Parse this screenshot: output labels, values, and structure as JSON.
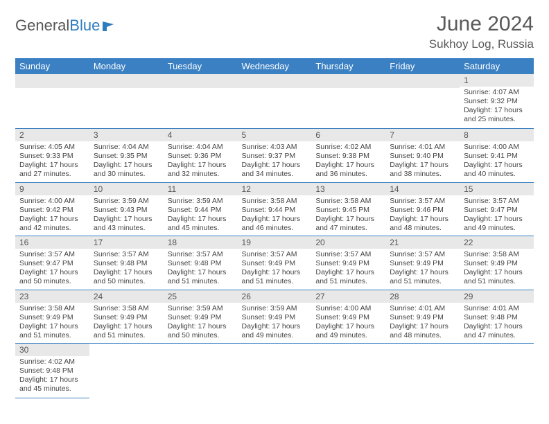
{
  "brand": {
    "part1": "General",
    "part2": "Blue",
    "accent_color": "#2f7bbf"
  },
  "title": {
    "month": "June 2024",
    "location": "Sukhoy Log, Russia"
  },
  "colors": {
    "header_bg": "#3a80c3",
    "header_text": "#ffffff",
    "strip_bg": "#e8e8e8",
    "cell_border": "#3a80c3",
    "text": "#444444",
    "title_text": "#5a5a5a"
  },
  "weekdays": [
    "Sunday",
    "Monday",
    "Tuesday",
    "Wednesday",
    "Thursday",
    "Friday",
    "Saturday"
  ],
  "weeks": [
    [
      null,
      null,
      null,
      null,
      null,
      null,
      {
        "n": "1",
        "sr": "Sunrise: 4:07 AM",
        "ss": "Sunset: 9:32 PM",
        "d1": "Daylight: 17 hours",
        "d2": "and 25 minutes."
      }
    ],
    [
      {
        "n": "2",
        "sr": "Sunrise: 4:05 AM",
        "ss": "Sunset: 9:33 PM",
        "d1": "Daylight: 17 hours",
        "d2": "and 27 minutes."
      },
      {
        "n": "3",
        "sr": "Sunrise: 4:04 AM",
        "ss": "Sunset: 9:35 PM",
        "d1": "Daylight: 17 hours",
        "d2": "and 30 minutes."
      },
      {
        "n": "4",
        "sr": "Sunrise: 4:04 AM",
        "ss": "Sunset: 9:36 PM",
        "d1": "Daylight: 17 hours",
        "d2": "and 32 minutes."
      },
      {
        "n": "5",
        "sr": "Sunrise: 4:03 AM",
        "ss": "Sunset: 9:37 PM",
        "d1": "Daylight: 17 hours",
        "d2": "and 34 minutes."
      },
      {
        "n": "6",
        "sr": "Sunrise: 4:02 AM",
        "ss": "Sunset: 9:38 PM",
        "d1": "Daylight: 17 hours",
        "d2": "and 36 minutes."
      },
      {
        "n": "7",
        "sr": "Sunrise: 4:01 AM",
        "ss": "Sunset: 9:40 PM",
        "d1": "Daylight: 17 hours",
        "d2": "and 38 minutes."
      },
      {
        "n": "8",
        "sr": "Sunrise: 4:00 AM",
        "ss": "Sunset: 9:41 PM",
        "d1": "Daylight: 17 hours",
        "d2": "and 40 minutes."
      }
    ],
    [
      {
        "n": "9",
        "sr": "Sunrise: 4:00 AM",
        "ss": "Sunset: 9:42 PM",
        "d1": "Daylight: 17 hours",
        "d2": "and 42 minutes."
      },
      {
        "n": "10",
        "sr": "Sunrise: 3:59 AM",
        "ss": "Sunset: 9:43 PM",
        "d1": "Daylight: 17 hours",
        "d2": "and 43 minutes."
      },
      {
        "n": "11",
        "sr": "Sunrise: 3:59 AM",
        "ss": "Sunset: 9:44 PM",
        "d1": "Daylight: 17 hours",
        "d2": "and 45 minutes."
      },
      {
        "n": "12",
        "sr": "Sunrise: 3:58 AM",
        "ss": "Sunset: 9:44 PM",
        "d1": "Daylight: 17 hours",
        "d2": "and 46 minutes."
      },
      {
        "n": "13",
        "sr": "Sunrise: 3:58 AM",
        "ss": "Sunset: 9:45 PM",
        "d1": "Daylight: 17 hours",
        "d2": "and 47 minutes."
      },
      {
        "n": "14",
        "sr": "Sunrise: 3:57 AM",
        "ss": "Sunset: 9:46 PM",
        "d1": "Daylight: 17 hours",
        "d2": "and 48 minutes."
      },
      {
        "n": "15",
        "sr": "Sunrise: 3:57 AM",
        "ss": "Sunset: 9:47 PM",
        "d1": "Daylight: 17 hours",
        "d2": "and 49 minutes."
      }
    ],
    [
      {
        "n": "16",
        "sr": "Sunrise: 3:57 AM",
        "ss": "Sunset: 9:47 PM",
        "d1": "Daylight: 17 hours",
        "d2": "and 50 minutes."
      },
      {
        "n": "17",
        "sr": "Sunrise: 3:57 AM",
        "ss": "Sunset: 9:48 PM",
        "d1": "Daylight: 17 hours",
        "d2": "and 50 minutes."
      },
      {
        "n": "18",
        "sr": "Sunrise: 3:57 AM",
        "ss": "Sunset: 9:48 PM",
        "d1": "Daylight: 17 hours",
        "d2": "and 51 minutes."
      },
      {
        "n": "19",
        "sr": "Sunrise: 3:57 AM",
        "ss": "Sunset: 9:49 PM",
        "d1": "Daylight: 17 hours",
        "d2": "and 51 minutes."
      },
      {
        "n": "20",
        "sr": "Sunrise: 3:57 AM",
        "ss": "Sunset: 9:49 PM",
        "d1": "Daylight: 17 hours",
        "d2": "and 51 minutes."
      },
      {
        "n": "21",
        "sr": "Sunrise: 3:57 AM",
        "ss": "Sunset: 9:49 PM",
        "d1": "Daylight: 17 hours",
        "d2": "and 51 minutes."
      },
      {
        "n": "22",
        "sr": "Sunrise: 3:58 AM",
        "ss": "Sunset: 9:49 PM",
        "d1": "Daylight: 17 hours",
        "d2": "and 51 minutes."
      }
    ],
    [
      {
        "n": "23",
        "sr": "Sunrise: 3:58 AM",
        "ss": "Sunset: 9:49 PM",
        "d1": "Daylight: 17 hours",
        "d2": "and 51 minutes."
      },
      {
        "n": "24",
        "sr": "Sunrise: 3:58 AM",
        "ss": "Sunset: 9:49 PM",
        "d1": "Daylight: 17 hours",
        "d2": "and 51 minutes."
      },
      {
        "n": "25",
        "sr": "Sunrise: 3:59 AM",
        "ss": "Sunset: 9:49 PM",
        "d1": "Daylight: 17 hours",
        "d2": "and 50 minutes."
      },
      {
        "n": "26",
        "sr": "Sunrise: 3:59 AM",
        "ss": "Sunset: 9:49 PM",
        "d1": "Daylight: 17 hours",
        "d2": "and 49 minutes."
      },
      {
        "n": "27",
        "sr": "Sunrise: 4:00 AM",
        "ss": "Sunset: 9:49 PM",
        "d1": "Daylight: 17 hours",
        "d2": "and 49 minutes."
      },
      {
        "n": "28",
        "sr": "Sunrise: 4:01 AM",
        "ss": "Sunset: 9:49 PM",
        "d1": "Daylight: 17 hours",
        "d2": "and 48 minutes."
      },
      {
        "n": "29",
        "sr": "Sunrise: 4:01 AM",
        "ss": "Sunset: 9:48 PM",
        "d1": "Daylight: 17 hours",
        "d2": "and 47 minutes."
      }
    ],
    [
      {
        "n": "30",
        "sr": "Sunrise: 4:02 AM",
        "ss": "Sunset: 9:48 PM",
        "d1": "Daylight: 17 hours",
        "d2": "and 45 minutes."
      },
      null,
      null,
      null,
      null,
      null,
      null
    ]
  ]
}
